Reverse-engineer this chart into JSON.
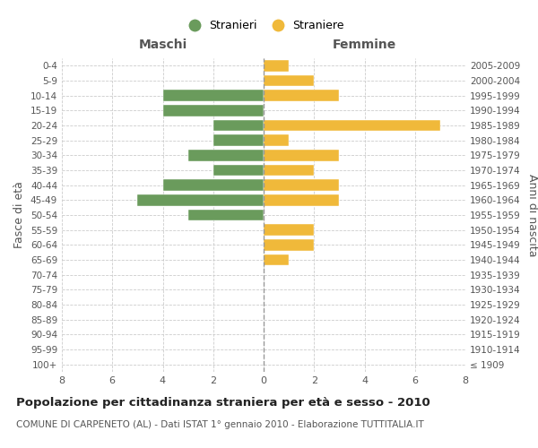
{
  "age_groups": [
    "100+",
    "95-99",
    "90-94",
    "85-89",
    "80-84",
    "75-79",
    "70-74",
    "65-69",
    "60-64",
    "55-59",
    "50-54",
    "45-49",
    "40-44",
    "35-39",
    "30-34",
    "25-29",
    "20-24",
    "15-19",
    "10-14",
    "5-9",
    "0-4"
  ],
  "birth_years": [
    "≤ 1909",
    "1910-1914",
    "1915-1919",
    "1920-1924",
    "1925-1929",
    "1930-1934",
    "1935-1939",
    "1940-1944",
    "1945-1949",
    "1950-1954",
    "1955-1959",
    "1960-1964",
    "1965-1969",
    "1970-1974",
    "1975-1979",
    "1980-1984",
    "1985-1989",
    "1990-1994",
    "1995-1999",
    "2000-2004",
    "2005-2009"
  ],
  "maschi": [
    0,
    0,
    0,
    0,
    0,
    0,
    0,
    0,
    0,
    0,
    3,
    5,
    4,
    2,
    3,
    2,
    2,
    4,
    4,
    0,
    0
  ],
  "femmine": [
    0,
    0,
    0,
    0,
    0,
    0,
    0,
    1,
    2,
    2,
    0,
    3,
    3,
    2,
    3,
    1,
    7,
    0,
    3,
    2,
    1
  ],
  "maschi_color": "#6a9b5c",
  "femmine_color": "#f0b93a",
  "title": "Popolazione per cittadinanza straniera per età e sesso - 2010",
  "subtitle": "COMUNE DI CARPENETO (AL) - Dati ISTAT 1° gennaio 2010 - Elaborazione TUTTITALIA.IT",
  "xlabel_left": "Maschi",
  "xlabel_right": "Femmine",
  "ylabel_left": "Fasce di età",
  "ylabel_right": "Anni di nascita",
  "legend_maschi": "Stranieri",
  "legend_femmine": "Straniere",
  "xlim": 8,
  "background_color": "#ffffff",
  "grid_color": "#cccccc"
}
